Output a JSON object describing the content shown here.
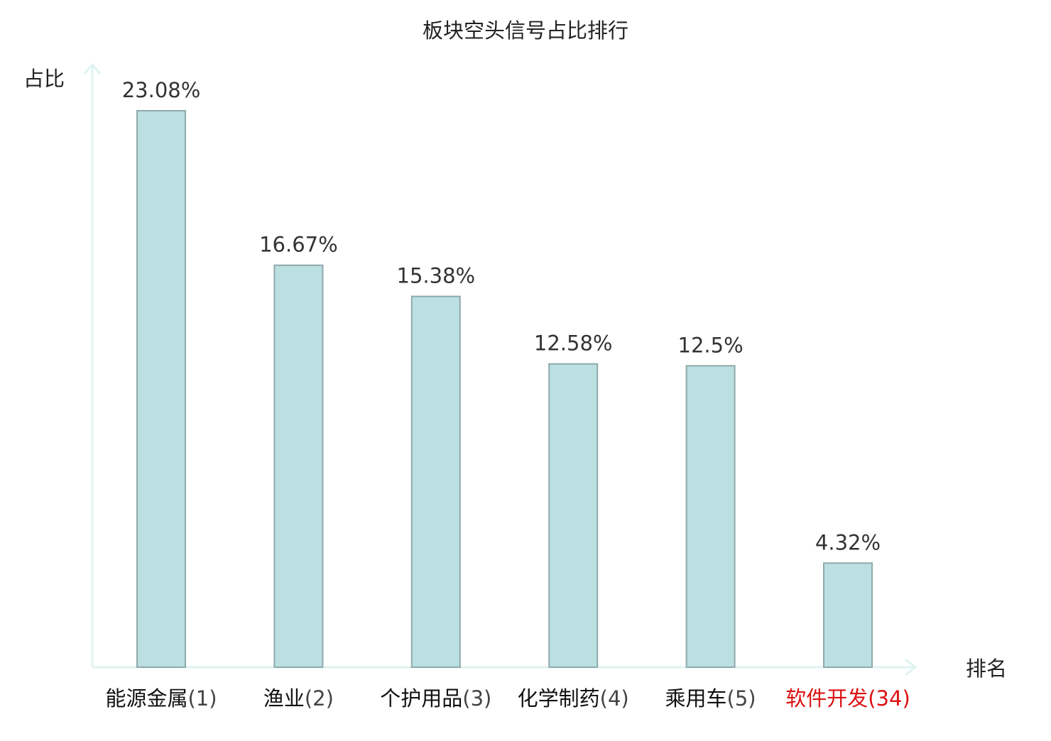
{
  "chart_data": {
    "type": "bar",
    "title": "板块空头信号占比排行",
    "ylabel": "占比",
    "xlabel": "排名",
    "ylim": [
      0,
      25
    ],
    "grid": false,
    "categories": [
      {
        "name": "能源金属",
        "rank": "(1)"
      },
      {
        "name": "渔业",
        "rank": "(2)"
      },
      {
        "name": "个护用品",
        "rank": "(3)"
      },
      {
        "name": "化学制药",
        "rank": "(4)"
      },
      {
        "name": "乘用车",
        "rank": "(5)"
      },
      {
        "name": "软件开发",
        "rank": "(34)"
      }
    ],
    "values": [
      23.08,
      16.67,
      15.38,
      12.58,
      12.5,
      4.32
    ],
    "value_labels": [
      "23.08%",
      "16.67%",
      "15.38%",
      "12.58%",
      "12.5%",
      "4.32%"
    ],
    "highlight_index": 5,
    "colors": {
      "bar_fill": "#bce0e2",
      "bar_stroke": "#8fa9ab",
      "axis": "#e0f3f1",
      "text": "#333333",
      "title": "#222222",
      "highlight": "#dd1111"
    }
  }
}
